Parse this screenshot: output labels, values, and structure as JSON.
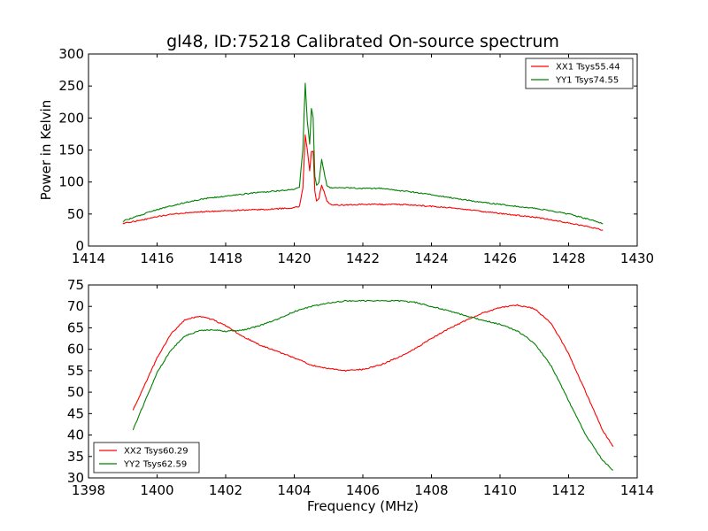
{
  "figure": {
    "title": "gl48, ID:75218 Calibrated On-source spectrum",
    "xlabel": "Frequency (MHz)"
  },
  "chart_data": [
    {
      "type": "line",
      "title": "gl48, ID:75218 Calibrated On-source spectrum",
      "xlabel": "",
      "ylabel": "Power in Kelvin",
      "xlim": [
        1414,
        1430
      ],
      "ylim": [
        0,
        300
      ],
      "xticks": [
        1414,
        1416,
        1418,
        1420,
        1422,
        1424,
        1426,
        1428,
        1430
      ],
      "yticks": [
        0,
        50,
        100,
        150,
        200,
        250,
        300
      ],
      "grid": false,
      "legend": "top-right",
      "series": [
        {
          "name": "XX1 Tsys55.44",
          "color": "#ff0000",
          "x": [
            1415.0,
            1415.5,
            1416.0,
            1416.5,
            1417.0,
            1417.5,
            1418.0,
            1418.5,
            1419.0,
            1419.5,
            1420.0,
            1420.15,
            1420.25,
            1420.32,
            1420.38,
            1420.45,
            1420.5,
            1420.55,
            1420.6,
            1420.65,
            1420.72,
            1420.8,
            1420.87,
            1420.95,
            1421.05,
            1421.2,
            1421.5,
            1422.0,
            1422.5,
            1423.0,
            1423.5,
            1424.0,
            1424.5,
            1425.0,
            1425.5,
            1426.0,
            1426.5,
            1427.0,
            1427.5,
            1428.0,
            1428.5,
            1429.0
          ],
          "y": [
            35,
            40,
            46,
            50,
            53,
            54,
            55,
            56,
            57,
            58,
            60,
            62,
            90,
            173,
            150,
            117,
            148,
            148,
            85,
            70,
            75,
            95,
            85,
            70,
            65,
            64,
            64,
            65,
            65,
            65,
            64,
            62,
            60,
            57,
            54,
            51,
            48,
            45,
            41,
            36,
            31,
            25
          ]
        },
        {
          "name": "YY1 Tsys74.55",
          "color": "#008000",
          "x": [
            1415.0,
            1415.5,
            1416.0,
            1416.5,
            1417.0,
            1417.5,
            1418.0,
            1418.5,
            1419.0,
            1419.5,
            1420.0,
            1420.15,
            1420.25,
            1420.32,
            1420.38,
            1420.45,
            1420.5,
            1420.55,
            1420.6,
            1420.65,
            1420.72,
            1420.8,
            1420.87,
            1420.95,
            1421.05,
            1421.2,
            1421.5,
            1422.0,
            1422.5,
            1423.0,
            1423.5,
            1424.0,
            1424.5,
            1425.0,
            1425.5,
            1426.0,
            1426.5,
            1427.0,
            1427.5,
            1428.0,
            1428.5,
            1429.0
          ],
          "y": [
            39,
            48,
            57,
            64,
            70,
            75,
            78,
            81,
            84,
            86,
            88,
            92,
            150,
            255,
            195,
            160,
            215,
            200,
            110,
            95,
            100,
            135,
            115,
            95,
            91,
            91,
            91,
            90,
            90,
            87,
            84,
            80,
            76,
            72,
            68,
            65,
            62,
            59,
            55,
            50,
            43,
            35
          ]
        }
      ]
    },
    {
      "type": "line",
      "title": "",
      "xlabel": "Frequency (MHz)",
      "ylabel": "",
      "xlim": [
        1398,
        1414
      ],
      "ylim": [
        30,
        75
      ],
      "xticks": [
        1398,
        1400,
        1402,
        1404,
        1406,
        1408,
        1410,
        1412,
        1414
      ],
      "yticks": [
        30,
        35,
        40,
        45,
        50,
        55,
        60,
        65,
        70,
        75
      ],
      "grid": false,
      "legend": "bottom-left",
      "series": [
        {
          "name": "XX2 Tsys60.29",
          "color": "#ff0000",
          "x": [
            1399.3,
            1399.6,
            1400.0,
            1400.4,
            1400.8,
            1401.2,
            1401.6,
            1402.0,
            1402.5,
            1403.0,
            1403.5,
            1404.0,
            1404.5,
            1405.0,
            1405.5,
            1406.0,
            1406.5,
            1407.0,
            1407.5,
            1408.0,
            1408.5,
            1409.0,
            1409.5,
            1410.0,
            1410.5,
            1411.0,
            1411.5,
            1412.0,
            1412.5,
            1413.0,
            1413.3
          ],
          "y": [
            45.8,
            51,
            58,
            63.5,
            66.8,
            67.7,
            67,
            65.5,
            63,
            61,
            59.5,
            58,
            56.3,
            55.5,
            55,
            55.3,
            56.3,
            58,
            60,
            62.5,
            64.8,
            66.7,
            68.5,
            69.7,
            70.3,
            69.5,
            66,
            59,
            50,
            41,
            37.3
          ]
        },
        {
          "name": "YY2 Tsys62.59",
          "color": "#008000",
          "x": [
            1399.3,
            1399.6,
            1400.0,
            1400.4,
            1400.8,
            1401.2,
            1401.6,
            1402.0,
            1402.5,
            1403.0,
            1403.5,
            1404.0,
            1404.5,
            1405.0,
            1405.5,
            1406.0,
            1406.5,
            1407.0,
            1407.5,
            1408.0,
            1408.5,
            1409.0,
            1409.5,
            1410.0,
            1410.5,
            1411.0,
            1411.5,
            1412.0,
            1412.5,
            1413.0,
            1413.3
          ],
          "y": [
            41.2,
            47,
            54.5,
            59.8,
            63,
            64.3,
            64.5,
            64.2,
            64.5,
            65.5,
            67,
            68.8,
            70,
            70.8,
            71.3,
            71.3,
            71.3,
            71.3,
            71,
            70,
            69,
            67.8,
            66.8,
            65.8,
            64.3,
            61.5,
            56,
            48,
            40,
            34,
            31.8
          ]
        }
      ]
    }
  ]
}
